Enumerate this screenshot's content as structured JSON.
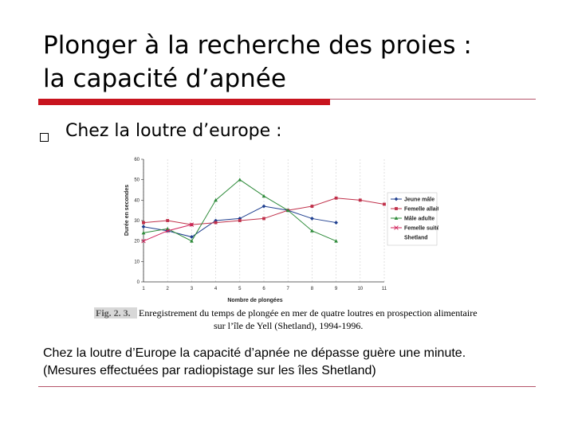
{
  "slide": {
    "title_line1": "Plonger à la recherche des proies :",
    "title_line2": "la capacité d’apnée",
    "bullet": "Chez la loutre d’europe :",
    "caption_fig": "Fig. 2. 3.",
    "caption_line1": "Enregistrement du temps de plongée en mer de quatre loutres en prospection alimentaire",
    "caption_line2": "sur l’île de Yell (Shetland), 1994-1996.",
    "body_line1": "Chez la loutre d’Europe la capacité d’apnée ne dépasse guère une minute.",
    "body_line2": "(Mesures effectuées par radiopistage sur les îles Shetland)"
  },
  "chart_data": {
    "type": "line",
    "xlabel": "Nombre de plongées",
    "ylabel": "Durée en secondes",
    "xlim": [
      1,
      11
    ],
    "ylim": [
      0,
      60
    ],
    "x_ticks": [
      1,
      2,
      3,
      4,
      5,
      6,
      7,
      8,
      9,
      10,
      11
    ],
    "y_ticks": [
      0,
      10,
      20,
      30,
      40,
      50,
      60
    ],
    "legend_position": "right",
    "legend_extra": "Shetland",
    "grid": "vertical",
    "series": [
      {
        "name": "Jeune mâle",
        "color": "#1f3f8f",
        "marker": "diamond",
        "x": [
          1,
          2,
          3,
          4,
          5,
          6,
          7,
          8,
          9
        ],
        "values": [
          27,
          25,
          22,
          30,
          31,
          37,
          35,
          31,
          29
        ]
      },
      {
        "name": "Femelle allaitante",
        "color": "#c0304a",
        "marker": "square",
        "x": [
          1,
          2,
          3,
          4,
          5,
          6,
          7,
          8,
          9,
          10,
          11
        ],
        "values": [
          29,
          30,
          28,
          29,
          30,
          31,
          35,
          37,
          41,
          40,
          38
        ]
      },
      {
        "name": "Mâle adulte",
        "color": "#2e8b3a",
        "marker": "triangle",
        "x": [
          1,
          2,
          3,
          4,
          5,
          6,
          7,
          8,
          9
        ],
        "values": [
          24,
          26,
          20,
          40,
          50,
          42,
          35,
          25,
          20
        ]
      },
      {
        "name": "Femelle suitée",
        "color": "#d0205a",
        "marker": "x",
        "x": [
          1,
          2,
          3
        ],
        "values": [
          20,
          25,
          28
        ]
      }
    ]
  }
}
